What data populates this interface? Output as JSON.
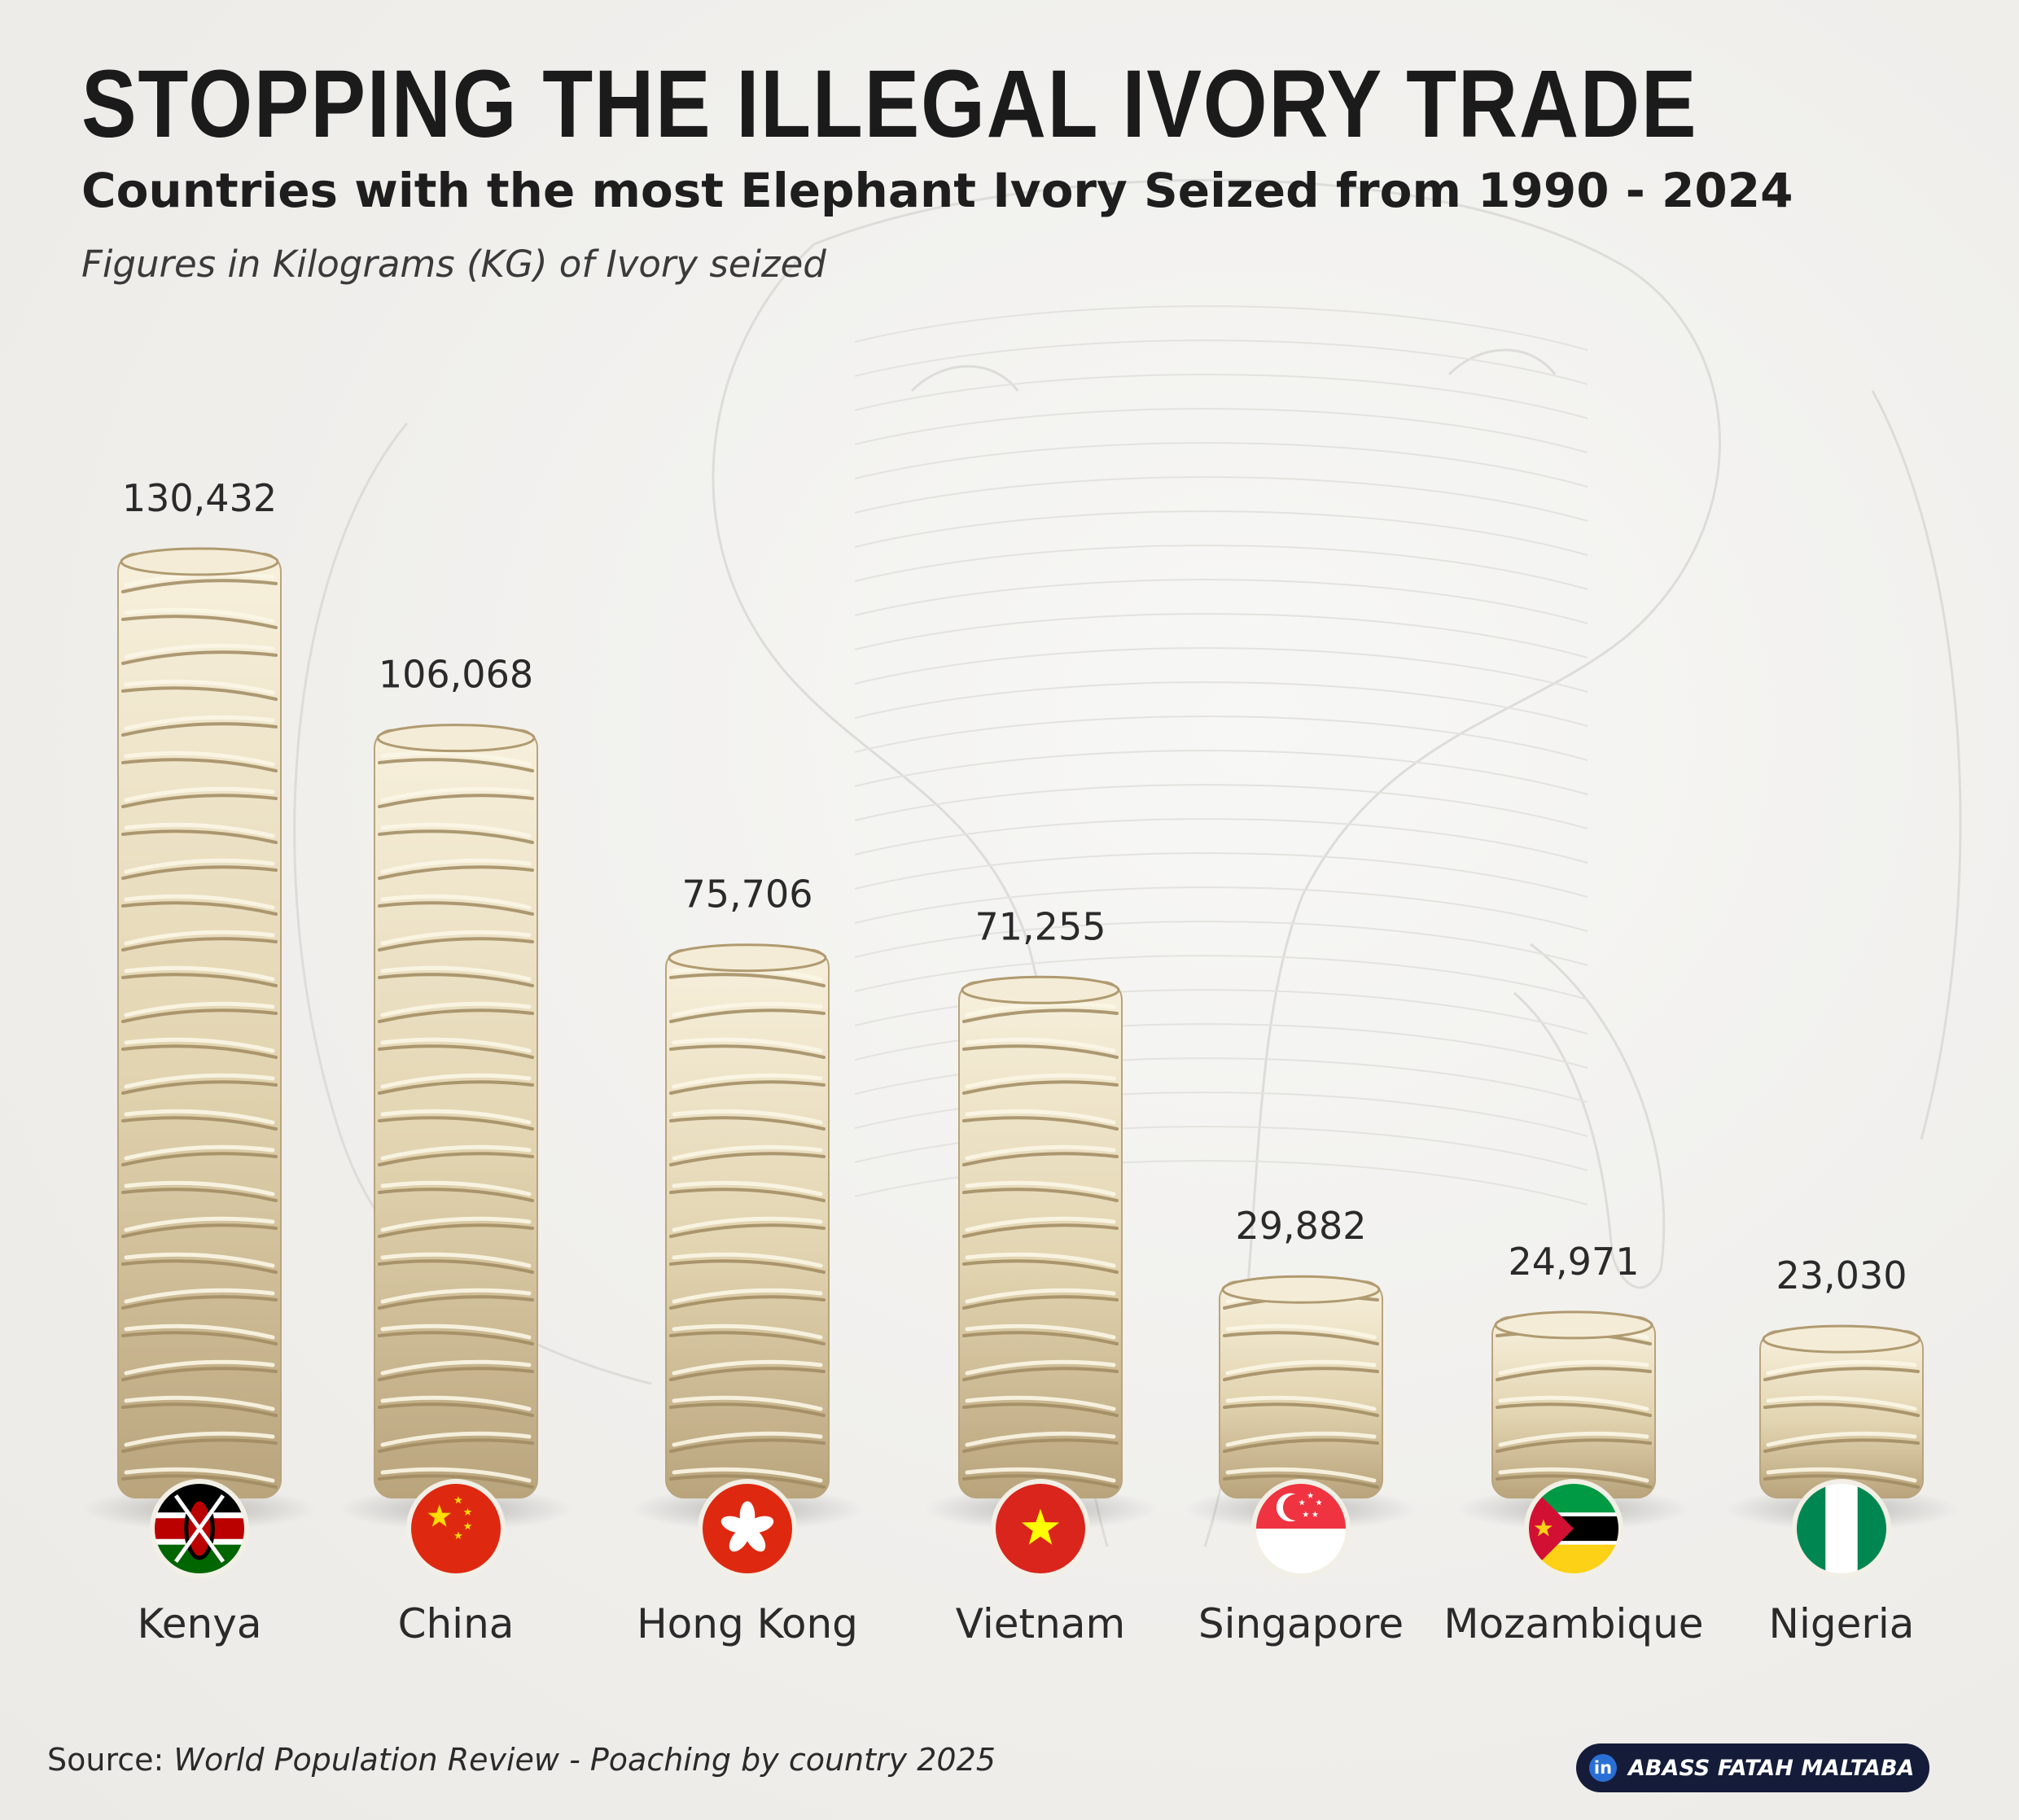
{
  "title": "STOPPING THE ILLEGAL IVORY TRADE",
  "subtitle": "Countries with the most Elephant Ivory Seized from 1990 - 2024",
  "note": "Figures in Kilograms (KG) of Ivory seized",
  "source_label": "Source:",
  "source_text": "World Population Review - Poaching by country 2025",
  "author": "ABASS FATAH MALTABA",
  "author_icon": "linkedin-icon",
  "colors": {
    "ivory_light": "#efe6cf",
    "ivory_mid": "#d9c9a3",
    "ivory_dark": "#a8926a",
    "text": "#1e1e1e",
    "badge": "#141c3a"
  },
  "chart_data": {
    "type": "bar",
    "title": "",
    "xlabel": "",
    "ylabel": "",
    "categories": [
      "Kenya",
      "China",
      "Hong Kong",
      "Vietnam",
      "Singapore",
      "Mozambique",
      "Nigeria"
    ],
    "values": [
      130432,
      106068,
      75706,
      71255,
      29882,
      24971,
      23030
    ],
    "value_labels": [
      "130,432",
      "106,068",
      "75,706",
      "71,255",
      "29,882",
      "24,971",
      "23,030"
    ],
    "flags": [
      "kenya-flag-icon",
      "china-flag-icon",
      "hong-kong-flag-icon",
      "vietnam-flag-icon",
      "singapore-flag-icon",
      "mozambique-flag-icon",
      "nigeria-flag-icon"
    ],
    "ylim": [
      0,
      130432
    ],
    "grid": false,
    "legend": "none"
  }
}
